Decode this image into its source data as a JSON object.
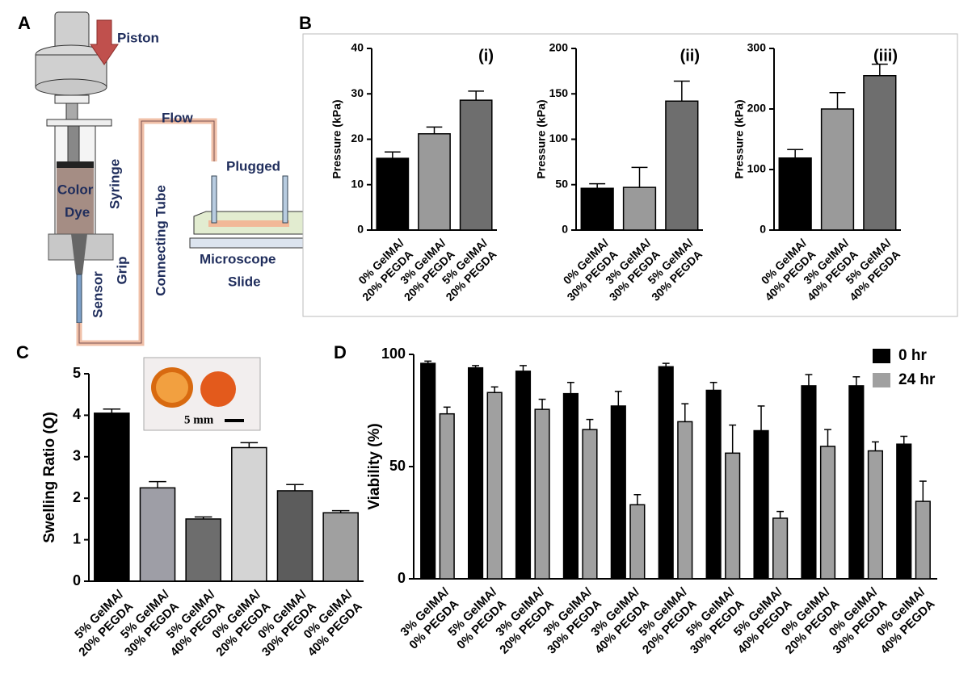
{
  "panel_labels": [
    "A",
    "B",
    "C",
    "D"
  ],
  "diagram": {
    "labels": {
      "piston": "Piston",
      "flow": "Flow",
      "plugged": "Plugged",
      "color": "Color",
      "dye": "Dye",
      "syringe": "Syringe",
      "connecting_tube": "Connecting Tube",
      "microscope": "Microscope",
      "slide": "Slide",
      "sensor": "Sensor",
      "grip": "Grip"
    }
  },
  "chart_data": [
    {
      "type": "bar",
      "annotation": "(i)",
      "ylabel": "Pressure (kPa)",
      "categories": [
        [
          "0% GelMA/",
          "20% PEGDA"
        ],
        [
          "3% GelMA/",
          "20% PEGDA"
        ],
        [
          "5% GelMA/",
          "20% PEGDA"
        ]
      ],
      "values": [
        15.8,
        21.2,
        28.6
      ],
      "errors": [
        1.4,
        1.5,
        2.0
      ],
      "colors": [
        "#000000",
        "#9a9a9a",
        "#6e6e6e"
      ],
      "ylim": [
        0,
        40
      ],
      "yticks": [
        0,
        10,
        20,
        30,
        40
      ]
    },
    {
      "type": "bar",
      "annotation": "(ii)",
      "ylabel": "Pressure (kPa)",
      "categories": [
        [
          "0% GelMA/",
          "30% PEGDA"
        ],
        [
          "3% GelMA/",
          "30% PEGDA"
        ],
        [
          "5% GelMA/",
          "30% PEGDA"
        ]
      ],
      "values": [
        46,
        47,
        142
      ],
      "errors": [
        5,
        22,
        22
      ],
      "colors": [
        "#000000",
        "#9a9a9a",
        "#6e6e6e"
      ],
      "ylim": [
        0,
        200
      ],
      "yticks": [
        0,
        50,
        100,
        150,
        200
      ]
    },
    {
      "type": "bar",
      "annotation": "(iii)",
      "ylabel": "Pressure (kPa)",
      "categories": [
        [
          "0% GelMA/",
          "40% PEGDA"
        ],
        [
          "3% GelMA/",
          "40% PEGDA"
        ],
        [
          "5% GelMA/",
          "40% PEGDA"
        ]
      ],
      "values": [
        119,
        200,
        255
      ],
      "errors": [
        14,
        27,
        19
      ],
      "colors": [
        "#000000",
        "#9a9a9a",
        "#6e6e6e"
      ],
      "ylim": [
        0,
        300
      ],
      "yticks": [
        0,
        100,
        200,
        300
      ]
    },
    {
      "type": "bar",
      "annotation": "5 mm",
      "ylabel": "Swelling Ratio (Q)",
      "categories": [
        [
          "5% GelMA/",
          "20% PEGDA"
        ],
        [
          "5% GelMA/",
          "30% PEGDA"
        ],
        [
          "5% GelMA/",
          "40% PEGDA"
        ],
        [
          "0% GelMA/",
          "20% PEGDA"
        ],
        [
          "0% GelMA/",
          "30% PEGDA"
        ],
        [
          "0% GelMA/",
          "40% PEGDA"
        ]
      ],
      "values": [
        4.05,
        2.25,
        1.5,
        3.22,
        2.18,
        1.65
      ],
      "errors": [
        0.1,
        0.15,
        0.05,
        0.12,
        0.15,
        0.05
      ],
      "colors": [
        "#000000",
        "#9e9ea6",
        "#6d6d6d",
        "#d4d4d4",
        "#5c5c5c",
        "#a0a0a0"
      ],
      "ylim": [
        0,
        5
      ],
      "yticks": [
        0,
        1,
        2,
        3,
        4,
        5
      ]
    },
    {
      "type": "bar",
      "ylabel": "Viability (%)",
      "legend": "upper right",
      "categories": [
        [
          "3% GelMA/",
          "0% PEGDA"
        ],
        [
          "5% GelMA/",
          "0% PEGDA"
        ],
        [
          "3% GelMA/",
          "20% PEGDA"
        ],
        [
          "3% GelMA/",
          "30% PEGDA"
        ],
        [
          "3% GelMA/",
          "40% PEGDA"
        ],
        [
          "5% GelMA/",
          "20% PEGDA"
        ],
        [
          "5% GelMA/",
          "30% PEGDA"
        ],
        [
          "5% GelMA/",
          "40% PEGDA"
        ],
        [
          "0% GelMA/",
          "20% PEGDA"
        ],
        [
          "0% GelMA/",
          "30% PEGDA"
        ],
        [
          "0% GelMA/",
          "40% PEGDA"
        ]
      ],
      "series": [
        {
          "name": "0 hr",
          "color": "#000000",
          "values": [
            96,
            94,
            92.5,
            82.5,
            77,
            94.5,
            84,
            66,
            86,
            86,
            60
          ],
          "errors": [
            1,
            1,
            2.5,
            5,
            6.5,
            1.5,
            3.5,
            11,
            5,
            4,
            3.5
          ]
        },
        {
          "name": "24 hr",
          "color": "#a0a0a0",
          "values": [
            73.5,
            83,
            75.5,
            66.5,
            33,
            70,
            56,
            27,
            59,
            57,
            34.5
          ],
          "errors": [
            3,
            2.5,
            4.5,
            4.5,
            4.5,
            8,
            12.5,
            3,
            7.5,
            4,
            9
          ]
        }
      ],
      "ylim": [
        0,
        100
      ],
      "yticks": [
        0,
        50,
        100
      ]
    }
  ]
}
